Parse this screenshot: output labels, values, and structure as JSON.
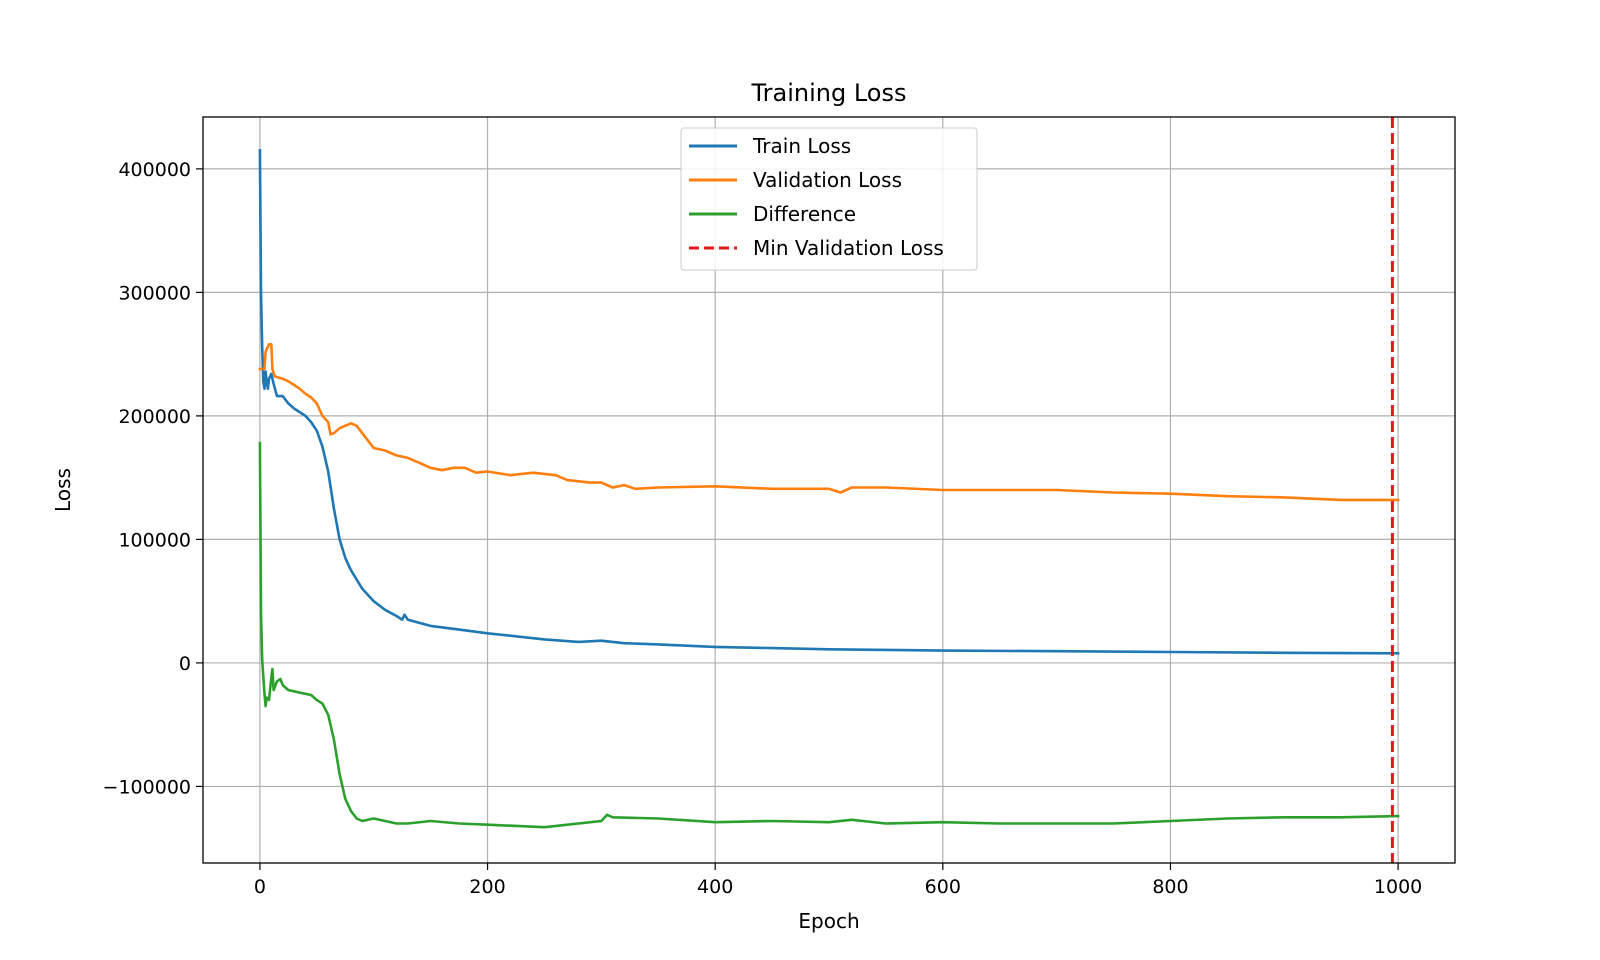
{
  "chart_data": {
    "type": "line",
    "title": "Training Loss",
    "xlabel": "Epoch",
    "ylabel": "Loss",
    "xlim": [
      -50,
      1050
    ],
    "ylim": [
      -162000,
      442000
    ],
    "xticks": [
      0,
      200,
      400,
      600,
      800,
      1000
    ],
    "yticks": [
      -100000,
      0,
      100000,
      200000,
      300000,
      400000
    ],
    "xtick_labels": [
      "0",
      "200",
      "400",
      "600",
      "800",
      "1000"
    ],
    "ytick_labels": [
      "−100000",
      "0",
      "100000",
      "200000",
      "300000",
      "400000"
    ],
    "grid": true,
    "legend_position": "upper center",
    "series": [
      {
        "name": "Train Loss",
        "color": "#1f77b4",
        "points": [
          [
            0,
            415000
          ],
          [
            1,
            300000
          ],
          [
            2,
            255000
          ],
          [
            3,
            228000
          ],
          [
            4,
            222000
          ],
          [
            5,
            236000
          ],
          [
            6,
            228000
          ],
          [
            7,
            222000
          ],
          [
            8,
            230000
          ],
          [
            10,
            234000
          ],
          [
            12,
            226000
          ],
          [
            15,
            216000
          ],
          [
            20,
            216000
          ],
          [
            25,
            210000
          ],
          [
            30,
            206000
          ],
          [
            40,
            200000
          ],
          [
            45,
            195000
          ],
          [
            50,
            188000
          ],
          [
            55,
            175000
          ],
          [
            60,
            155000
          ],
          [
            65,
            125000
          ],
          [
            70,
            100000
          ],
          [
            75,
            85000
          ],
          [
            80,
            75000
          ],
          [
            90,
            60000
          ],
          [
            100,
            50000
          ],
          [
            110,
            43000
          ],
          [
            120,
            38000
          ],
          [
            125,
            35000
          ],
          [
            127,
            39000
          ],
          [
            130,
            35000
          ],
          [
            150,
            30000
          ],
          [
            175,
            27000
          ],
          [
            200,
            24000
          ],
          [
            250,
            19000
          ],
          [
            280,
            17000
          ],
          [
            300,
            18000
          ],
          [
            320,
            16000
          ],
          [
            350,
            15000
          ],
          [
            400,
            13000
          ],
          [
            450,
            12000
          ],
          [
            500,
            11000
          ],
          [
            550,
            10500
          ],
          [
            600,
            10000
          ],
          [
            700,
            9500
          ],
          [
            800,
            8800
          ],
          [
            900,
            8200
          ],
          [
            1000,
            7800
          ]
        ]
      },
      {
        "name": "Validation Loss",
        "color": "#ff7f0e",
        "points": [
          [
            0,
            238000
          ],
          [
            4,
            238000
          ],
          [
            5,
            252000
          ],
          [
            8,
            258000
          ],
          [
            10,
            258000
          ],
          [
            11,
            238000
          ],
          [
            13,
            232000
          ],
          [
            20,
            230000
          ],
          [
            25,
            228000
          ],
          [
            30,
            225000
          ],
          [
            35,
            222000
          ],
          [
            40,
            218000
          ],
          [
            45,
            215000
          ],
          [
            50,
            210000
          ],
          [
            55,
            200000
          ],
          [
            60,
            195000
          ],
          [
            62,
            185000
          ],
          [
            65,
            186000
          ],
          [
            70,
            190000
          ],
          [
            75,
            192000
          ],
          [
            80,
            194000
          ],
          [
            85,
            192000
          ],
          [
            90,
            186000
          ],
          [
            95,
            180000
          ],
          [
            100,
            174000
          ],
          [
            110,
            172000
          ],
          [
            120,
            168000
          ],
          [
            130,
            166000
          ],
          [
            140,
            162000
          ],
          [
            150,
            158000
          ],
          [
            160,
            156000
          ],
          [
            170,
            158000
          ],
          [
            180,
            158000
          ],
          [
            190,
            154000
          ],
          [
            200,
            155000
          ],
          [
            220,
            152000
          ],
          [
            240,
            154000
          ],
          [
            260,
            152000
          ],
          [
            270,
            148000
          ],
          [
            290,
            146000
          ],
          [
            300,
            146000
          ],
          [
            310,
            142000
          ],
          [
            320,
            144000
          ],
          [
            330,
            141000
          ],
          [
            350,
            142000
          ],
          [
            400,
            143000
          ],
          [
            450,
            141000
          ],
          [
            500,
            141000
          ],
          [
            510,
            138000
          ],
          [
            520,
            142000
          ],
          [
            550,
            142000
          ],
          [
            600,
            140000
          ],
          [
            650,
            140000
          ],
          [
            700,
            140000
          ],
          [
            750,
            138000
          ],
          [
            800,
            137000
          ],
          [
            850,
            135000
          ],
          [
            900,
            134000
          ],
          [
            950,
            132000
          ],
          [
            1000,
            132000
          ]
        ]
      },
      {
        "name": "Difference",
        "color": "#2ca02c",
        "points": [
          [
            0,
            178000
          ],
          [
            1,
            40000
          ],
          [
            2,
            2000
          ],
          [
            4,
            -25000
          ],
          [
            5,
            -35000
          ],
          [
            6,
            -28000
          ],
          [
            8,
            -30000
          ],
          [
            10,
            -12000
          ],
          [
            11,
            -5000
          ],
          [
            12,
            -22000
          ],
          [
            15,
            -15000
          ],
          [
            18,
            -13000
          ],
          [
            20,
            -18000
          ],
          [
            25,
            -22000
          ],
          [
            30,
            -23000
          ],
          [
            35,
            -24000
          ],
          [
            40,
            -25000
          ],
          [
            45,
            -26000
          ],
          [
            50,
            -30000
          ],
          [
            55,
            -33000
          ],
          [
            60,
            -42000
          ],
          [
            65,
            -62000
          ],
          [
            70,
            -90000
          ],
          [
            75,
            -110000
          ],
          [
            80,
            -120000
          ],
          [
            85,
            -126000
          ],
          [
            90,
            -128000
          ],
          [
            100,
            -126000
          ],
          [
            110,
            -128000
          ],
          [
            120,
            -130000
          ],
          [
            130,
            -130000
          ],
          [
            150,
            -128000
          ],
          [
            175,
            -130000
          ],
          [
            200,
            -131000
          ],
          [
            250,
            -133000
          ],
          [
            300,
            -128000
          ],
          [
            305,
            -123000
          ],
          [
            310,
            -125000
          ],
          [
            350,
            -126000
          ],
          [
            400,
            -129000
          ],
          [
            450,
            -128000
          ],
          [
            500,
            -129000
          ],
          [
            520,
            -127000
          ],
          [
            550,
            -130000
          ],
          [
            600,
            -129000
          ],
          [
            650,
            -130000
          ],
          [
            700,
            -130000
          ],
          [
            750,
            -130000
          ],
          [
            800,
            -128000
          ],
          [
            850,
            -126000
          ],
          [
            900,
            -125000
          ],
          [
            950,
            -125000
          ],
          [
            1000,
            -124000
          ]
        ]
      },
      {
        "name": "Min Validation Loss",
        "color": "#e31a1c",
        "style": "dashed",
        "vertical_x": 995
      }
    ]
  }
}
